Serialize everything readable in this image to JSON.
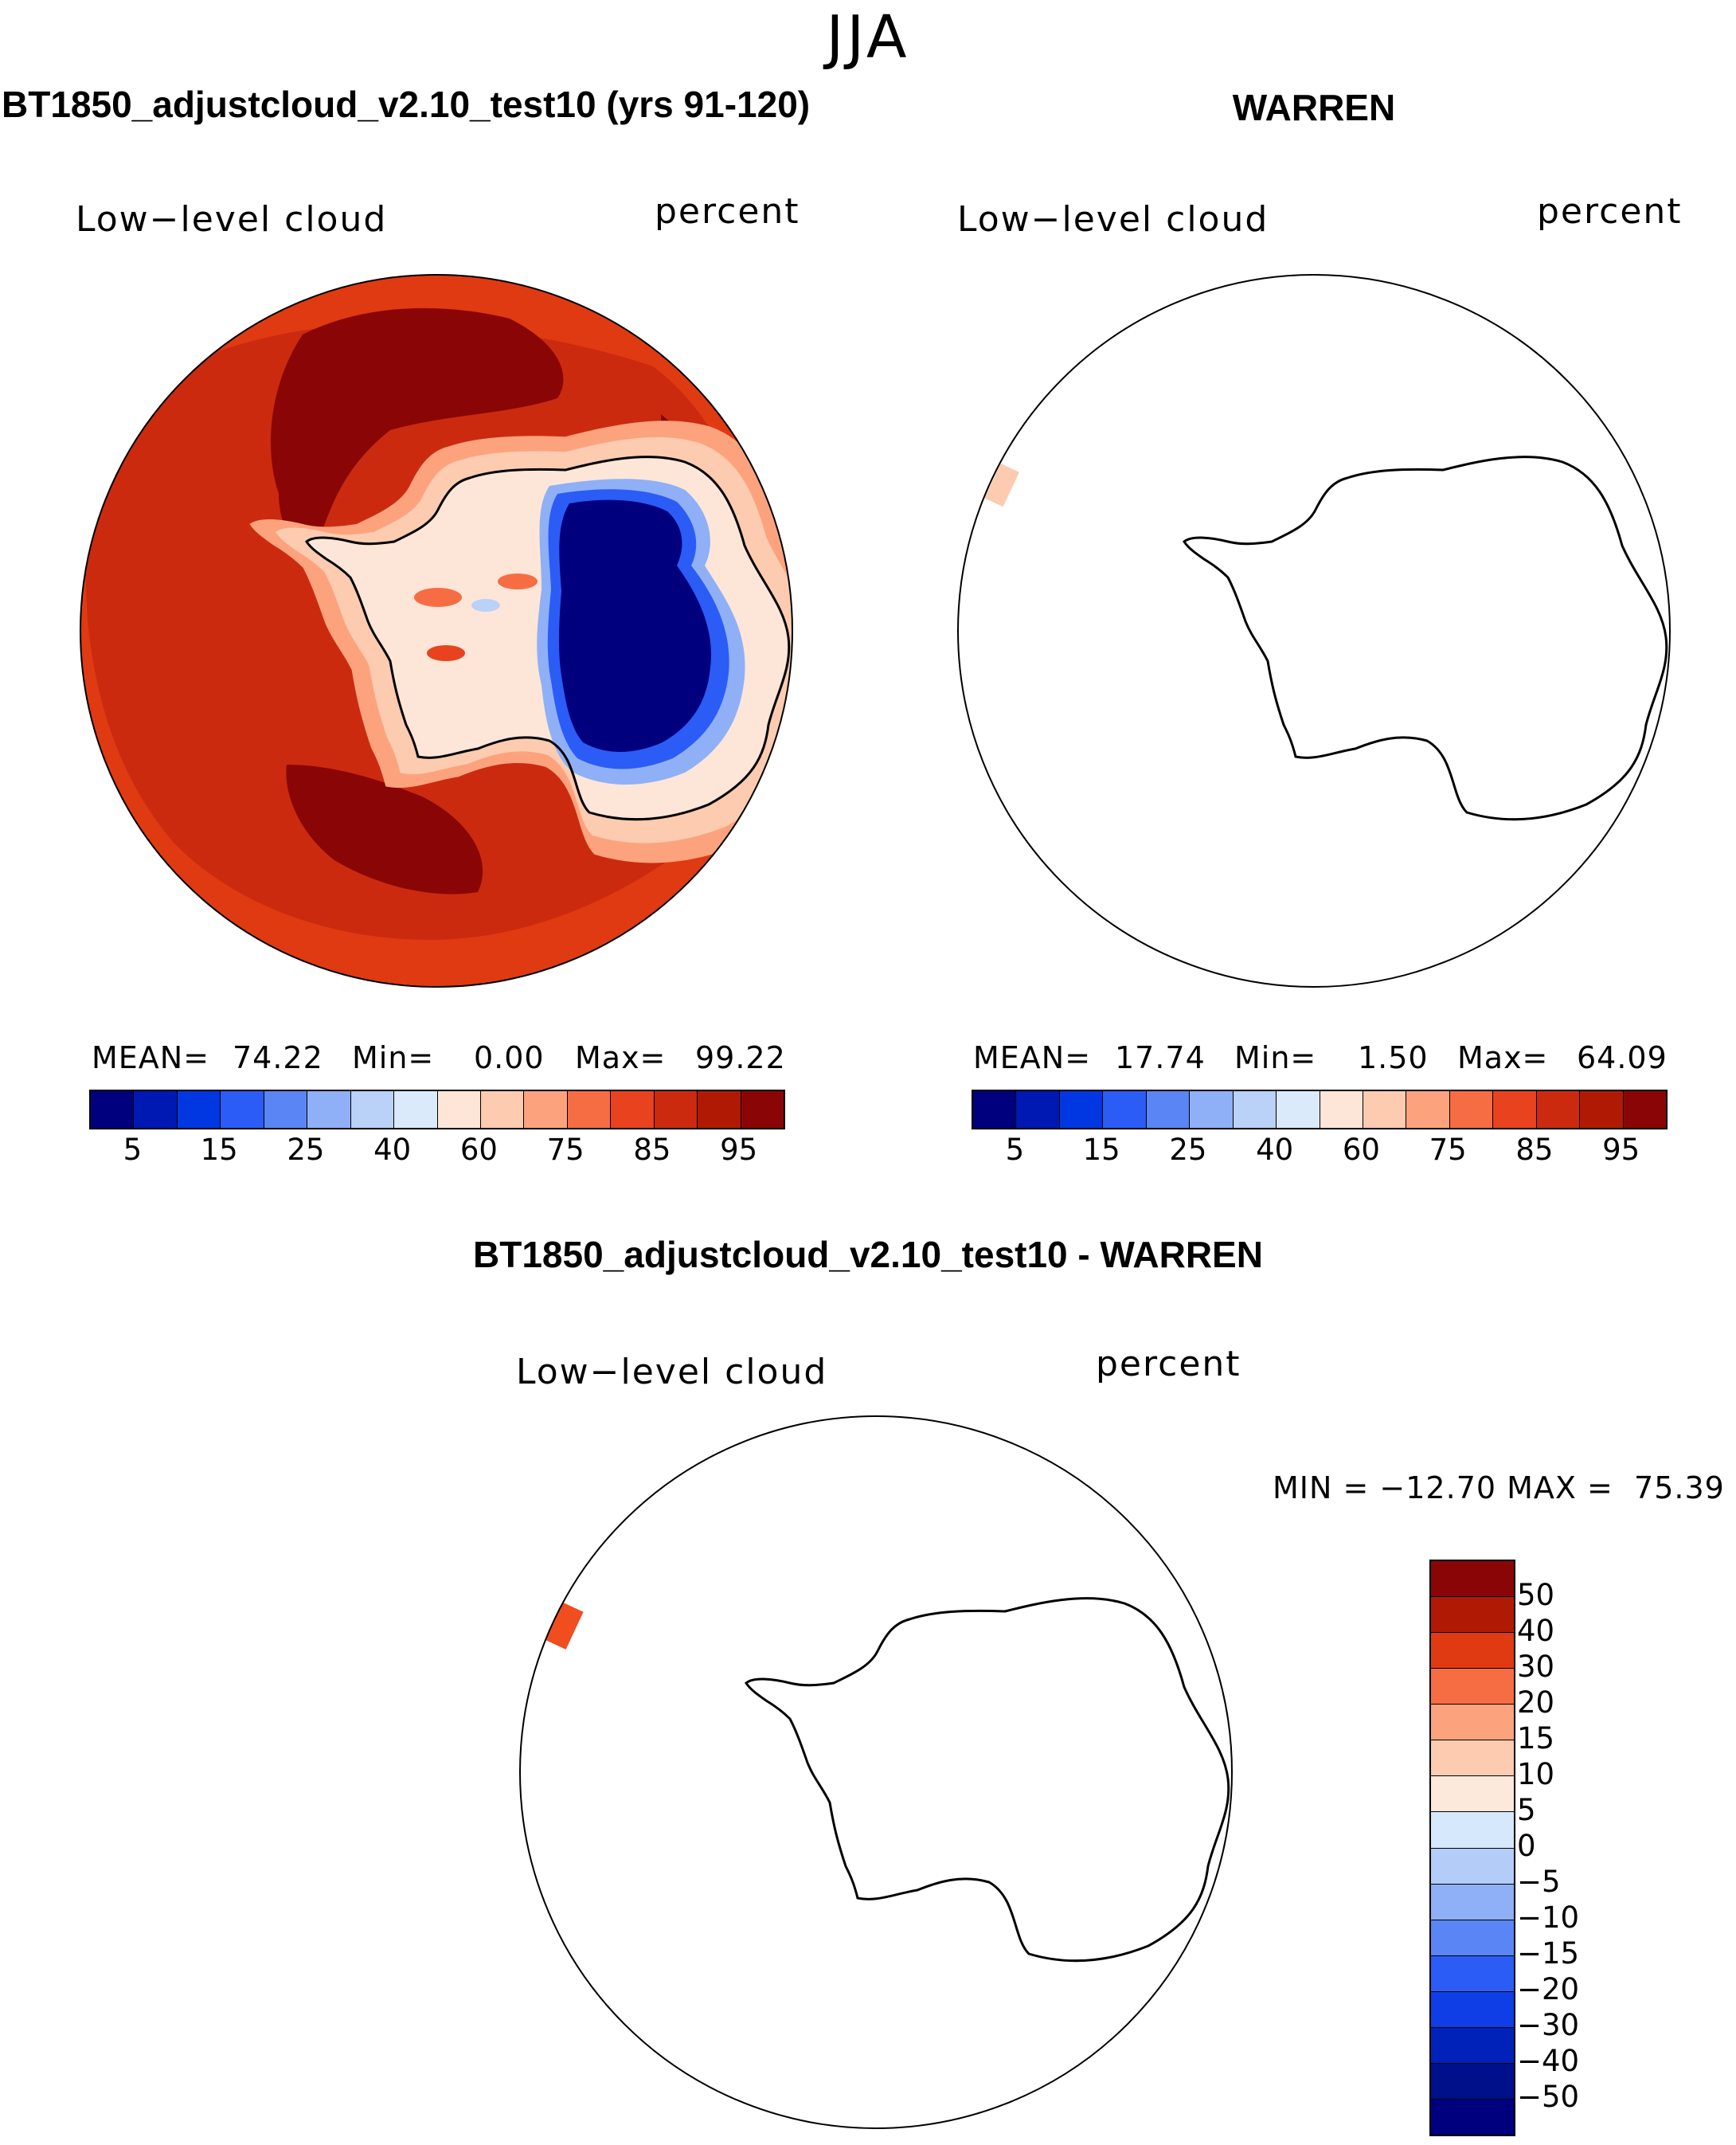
{
  "season_title": "JJA",
  "panels": [
    {
      "title": "BT1850_adjustcloud_v2.10_test10 (yrs 91-120)",
      "variable": "Low−level cloud",
      "units": "percent",
      "stats": {
        "mean_label": "MEAN=",
        "mean": "74.22",
        "min_label": "Min=",
        "min": "0.00",
        "max_label": "Max=",
        "max": "99.22"
      }
    },
    {
      "title": "WARREN",
      "variable": "Low−level cloud",
      "units": "percent",
      "stats": {
        "mean_label": "MEAN=",
        "mean": "17.74",
        "min_label": "Min=",
        "min": "1.50",
        "max_label": "Max=",
        "max": "64.09"
      }
    },
    {
      "title": "BT1850_adjustcloud_v2.10_test10 - WARREN",
      "variable": "Low−level cloud",
      "units": "percent",
      "stats_text": "MIN = −12.70 MAX =  75.39"
    }
  ],
  "colorbar_top": {
    "tick_labels": [
      "5",
      "15",
      "25",
      "40",
      "60",
      "75",
      "85",
      "95"
    ],
    "colors": [
      "#00007f",
      "#0019b3",
      "#0037e0",
      "#2b5cf6",
      "#5a85f5",
      "#8fb0f6",
      "#bad1f8",
      "#daeafa",
      "#fde6d8",
      "#fccbb0",
      "#fca37e",
      "#f76d43",
      "#e8421e",
      "#cc2a0f",
      "#b01a05",
      "#8a0606"
    ]
  },
  "colorbar_diff": {
    "tick_labels": [
      "50",
      "40",
      "30",
      "20",
      "15",
      "10",
      "5",
      "0",
      "−5",
      "−10",
      "−15",
      "−20",
      "−30",
      "−40",
      "−50"
    ],
    "colors": [
      "#8a0606",
      "#b01a05",
      "#e03a12",
      "#f76d43",
      "#fca37e",
      "#fccbb0",
      "#fde9dc",
      "#d6e8fb",
      "#b3cdf8",
      "#8fb0f6",
      "#5a85f5",
      "#2b5cf6",
      "#0f3ee6",
      "#0022b8",
      "#000f8a",
      "#00007f"
    ]
  }
}
